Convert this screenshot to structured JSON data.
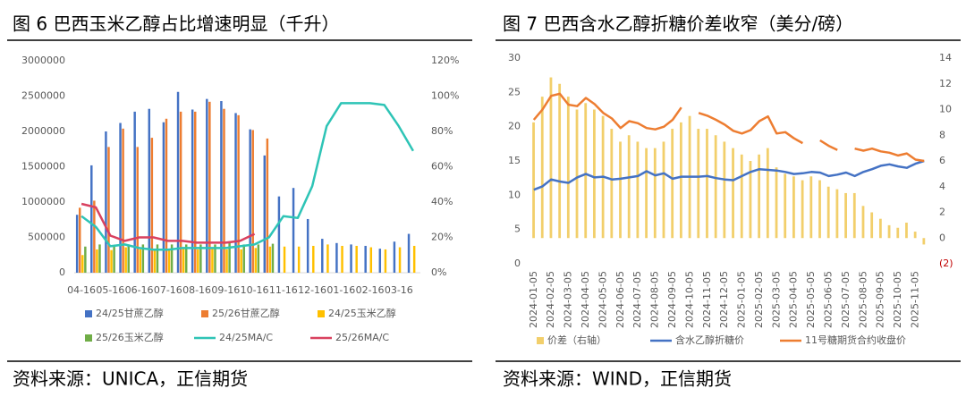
{
  "chart_data": [
    {
      "type": "bar",
      "title": "图 6 巴西玉米乙醇占比增速明显（千升）",
      "source": "资料来源：UNICA，正信期货",
      "categories": [
        "04-16",
        null,
        "05-16",
        null,
        "06-16",
        null,
        "07-16",
        null,
        "08-16",
        null,
        "09-16",
        null,
        "10-16",
        null,
        "11-16",
        null,
        "12-16",
        null,
        "01-16",
        null,
        "02-16",
        null,
        "03-16",
        null
      ],
      "ylim": [
        0,
        3000000
      ],
      "yticks": [
        0,
        500000,
        1000000,
        1500000,
        2000000,
        2500000,
        3000000
      ],
      "y2lim": [
        0,
        120
      ],
      "y2ticks": [
        {
          "value": 0,
          "label": "0%"
        },
        {
          "value": 20,
          "label": "20%"
        },
        {
          "value": 40,
          "label": "40%"
        },
        {
          "value": 60,
          "label": "60%"
        },
        {
          "value": 80,
          "label": "80%"
        },
        {
          "value": 100,
          "label": "100%"
        },
        {
          "value": 120,
          "label": "120%"
        }
      ],
      "series": [
        {
          "name": "24/25甘蔗乙醇",
          "type": "bar",
          "color": "#4472c4",
          "values": [
            820000,
            1520000,
            2000000,
            2120000,
            2280000,
            2320000,
            2130000,
            2560000,
            2310000,
            2460000,
            2430000,
            2260000,
            2030000,
            1660000,
            1080000,
            1200000,
            760000,
            480000,
            420000,
            400000,
            380000,
            340000,
            440000,
            550000
          ]
        },
        {
          "name": "25/26甘蔗乙醇",
          "type": "bar",
          "color": "#ed7d31",
          "values": [
            920000,
            1020000,
            1780000,
            2040000,
            1780000,
            1910000,
            2180000,
            2280000,
            2280000,
            2420000,
            2320000,
            2230000,
            2020000,
            1900000,
            null,
            null,
            null,
            null,
            null,
            null,
            null,
            null,
            null,
            null
          ]
        },
        {
          "name": "24/25玉米乙醇",
          "type": "bar",
          "color": "#ffc000",
          "values": [
            250000,
            330000,
            320000,
            360000,
            330000,
            330000,
            330000,
            340000,
            330000,
            340000,
            330000,
            330000,
            350000,
            370000,
            370000,
            370000,
            380000,
            400000,
            380000,
            380000,
            360000,
            330000,
            360000,
            380000
          ]
        },
        {
          "name": "25/26玉米乙醇",
          "type": "bar",
          "color": "#70ad47",
          "values": [
            370000,
            400000,
            390000,
            400000,
            400000,
            400000,
            400000,
            400000,
            400000,
            400000,
            420000,
            400000,
            400000,
            410000,
            null,
            null,
            null,
            null,
            null,
            null,
            null,
            null,
            null,
            null
          ]
        },
        {
          "name": "24/25MA/C",
          "type": "line",
          "axis": "y2",
          "color": "#2ec4b6",
          "values": [
            32,
            26,
            15,
            16,
            14,
            13,
            13,
            14,
            14,
            14,
            14,
            15,
            16,
            20,
            32,
            31,
            49,
            83,
            96,
            96,
            96,
            95,
            83,
            69
          ]
        },
        {
          "name": "25/26MA/C",
          "type": "line",
          "axis": "y2",
          "color": "#d9415f",
          "values": [
            39,
            37,
            21,
            18,
            20,
            20,
            18,
            18,
            17,
            17,
            17,
            18,
            22,
            null,
            null,
            null,
            null,
            null,
            null,
            null,
            null,
            null,
            null,
            null
          ]
        }
      ],
      "legend_columns": 3
    },
    {
      "type": "line",
      "title": "图 7 巴西含水乙醇折糖价差收窄（美分/磅）",
      "source": "资料来源：WIND，正信期货",
      "categories": [
        "2024-01-05",
        null,
        "2024-02-05",
        null,
        "2024-03-05",
        null,
        "2024-04-05",
        null,
        "2024-05-05",
        null,
        "2024-06-05",
        null,
        "2024-07-05",
        null,
        "2024-08-05",
        null,
        "2024-09-05",
        null,
        "2024-10-05",
        null,
        "2024-11-05",
        null,
        "2024-12-05",
        null,
        "2025-01-05",
        null,
        "2025-02-05",
        null,
        "2025-03-05",
        null,
        "2025-04-05",
        null,
        "2025-05-05",
        null,
        "2025-06-05",
        null,
        "2025-07-05",
        null,
        "2025-08-05",
        null,
        "2025-09-05",
        null,
        "2025-10-05",
        null,
        "2025-11-05",
        null
      ],
      "ylim": [
        0,
        30
      ],
      "yticks": [
        0,
        5,
        10,
        15,
        20,
        25,
        30
      ],
      "y2lim": [
        -2,
        14
      ],
      "y2ticks": [
        {
          "value": -2,
          "label": "(2)",
          "color": "#c00000"
        },
        0,
        2,
        4,
        6,
        8,
        10,
        12,
        14
      ],
      "series": [
        {
          "name": "价差（右轴）",
          "type": "bar",
          "axis": "y2",
          "color": "#f2cf6b",
          "values": [
            9.0,
            11.0,
            12.5,
            12.0,
            11.0,
            10.0,
            10.5,
            10.0,
            9.5,
            8.5,
            7.5,
            8.0,
            7.5,
            7.0,
            7.0,
            7.5,
            8.5,
            9.0,
            9.5,
            8.5,
            8.5,
            8.0,
            7.5,
            7.0,
            6.5,
            6.0,
            6.5,
            7.0,
            5.5,
            5.0,
            4.8,
            4.5,
            4.8,
            4.5,
            4.0,
            3.8,
            3.5,
            3.5,
            2.5,
            2.0,
            1.5,
            1.0,
            0.8,
            1.2,
            0.5,
            -0.5
          ]
        },
        {
          "name": "含水乙醇折糖价",
          "type": "line",
          "color": "#4472c4",
          "values": [
            10.8,
            11.3,
            12.3,
            12.0,
            11.8,
            12.6,
            13.1,
            12.6,
            12.7,
            12.3,
            12.4,
            12.6,
            12.8,
            13.5,
            12.9,
            13.2,
            12.4,
            12.7,
            12.7,
            12.7,
            12.8,
            12.5,
            12.3,
            12.2,
            12.8,
            13.4,
            13.8,
            13.7,
            13.6,
            13.4,
            13.1,
            13.2,
            13.4,
            13.3,
            12.8,
            13.0,
            13.3,
            12.8,
            13.4,
            13.8,
            14.3,
            14.5,
            14.2,
            14.0,
            14.6,
            15.0
          ]
        },
        {
          "name": "11号糖期货合约收盘价",
          "type": "line",
          "color": "#ed7d31",
          "values": [
            21.0,
            22.5,
            24.5,
            24.8,
            23.2,
            23.0,
            24.2,
            23.3,
            22.0,
            21.2,
            19.8,
            20.8,
            20.5,
            19.8,
            19.6,
            20.0,
            21.0,
            22.8,
            null,
            22.0,
            21.6,
            21.0,
            20.3,
            19.4,
            19.0,
            19.5,
            20.8,
            21.5,
            19.0,
            19.2,
            18.3,
            17.6,
            null,
            18.0,
            17.2,
            16.6,
            null,
            16.8,
            16.5,
            16.8,
            16.4,
            16.2,
            15.8,
            16.1,
            15.2,
            15.0
          ]
        }
      ],
      "legend_columns": 3
    }
  ]
}
